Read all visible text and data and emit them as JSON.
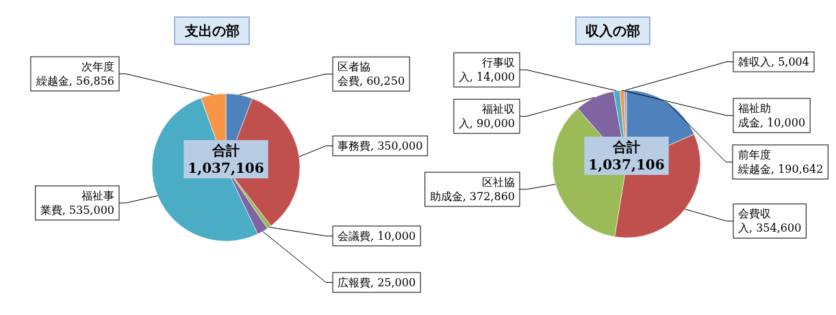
{
  "chart_data": [
    {
      "type": "pie",
      "title": "支出の部",
      "legend": false,
      "categories": [
        "区者協会費",
        "事務費",
        "会議費",
        "広報費",
        "福祉事業費",
        "次年度繰越金"
      ],
      "values": [
        60250,
        350000,
        10000,
        25000,
        535000,
        56856
      ],
      "value_labels": [
        "60,250",
        "350,000",
        "10,000",
        "25,000",
        "535,000",
        "56,856"
      ],
      "colors": [
        "#4f81bd",
        "#c0504d",
        "#9bbb59",
        "#8064a2",
        "#4bacc6",
        "#f79646"
      ],
      "annotations": [
        "合計",
        "1,037,106"
      ]
    },
    {
      "type": "pie",
      "title": "収入の部",
      "legend": false,
      "categories": [
        "前年度繰越金",
        "会費収入",
        "区社協助成金",
        "福祉収入",
        "行事収入",
        "福祉助成金",
        "雑収入"
      ],
      "values": [
        190642,
        354600,
        372860,
        90000,
        14000,
        10000,
        5004
      ],
      "value_labels": [
        "190,642",
        "354,600",
        "372,860",
        "90,000",
        "14,000",
        "10,000",
        "5,004"
      ],
      "colors": [
        "#4f81bd",
        "#c0504d",
        "#9bbb59",
        "#8064a2",
        "#4bacc6",
        "#f79646",
        "#7f9fcf"
      ],
      "annotations": [
        "合計",
        "1,037,106"
      ]
    }
  ]
}
